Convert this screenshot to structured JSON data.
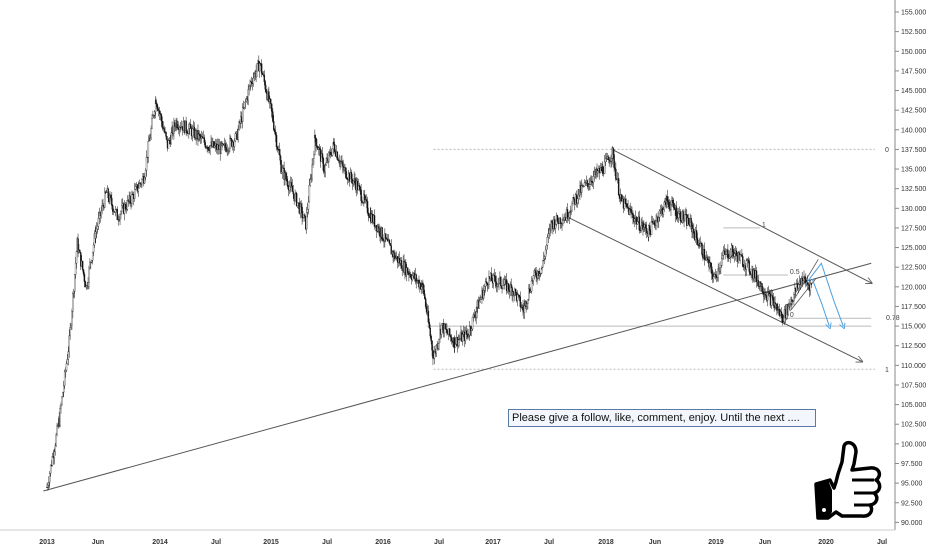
{
  "chart_data": {
    "type": "candlestick",
    "x_ticks": [
      "2013",
      "Jun",
      "2014",
      "Jul",
      "2015",
      "Jul",
      "2016",
      "Jul",
      "2017",
      "Jul",
      "2018",
      "Jun",
      "2019",
      "Jun",
      "2020",
      "Jul"
    ],
    "x_ticks_bold": [
      true,
      false,
      true,
      false,
      true,
      false,
      true,
      false,
      true,
      false,
      true,
      false,
      true,
      false,
      true,
      false
    ],
    "y_ticks": [
      "155.000",
      "152.500",
      "150.000",
      "147.500",
      "145.000",
      "142.500",
      "140.000",
      "137.500",
      "135.000",
      "132.500",
      "130.000",
      "127.500",
      "125.000",
      "122.500",
      "120.000",
      "117.500",
      "115.000",
      "112.500",
      "110.000",
      "107.500",
      "105.000",
      "102.500",
      "100.000",
      "97.500",
      "95.000",
      "92.500",
      "90.000"
    ],
    "ylim": [
      89.0,
      156.5
    ],
    "price_path": [
      [
        "2013-01-01",
        94.5
      ],
      [
        "2013-02-10",
        103
      ],
      [
        "2013-03-15",
        113
      ],
      [
        "2013-04-10",
        125.5
      ],
      [
        "2013-05-10",
        120
      ],
      [
        "2013-06-10",
        127
      ],
      [
        "2013-07-15",
        132
      ],
      [
        "2013-08-20",
        129
      ],
      [
        "2013-10-01",
        131
      ],
      [
        "2013-11-15",
        134
      ],
      [
        "2013-12-25",
        144
      ],
      [
        "2014-02-01",
        138
      ],
      [
        "2014-03-01",
        141
      ],
      [
        "2014-04-15",
        140
      ],
      [
        "2014-06-15",
        138
      ],
      [
        "2014-08-01",
        137.5
      ],
      [
        "2014-09-15",
        139
      ],
      [
        "2014-11-01",
        146
      ],
      [
        "2014-12-01",
        148.5
      ],
      [
        "2015-01-10",
        142
      ],
      [
        "2015-02-10",
        135
      ],
      [
        "2015-04-01",
        131
      ],
      [
        "2015-05-01",
        128
      ],
      [
        "2015-06-01",
        139
      ],
      [
        "2015-07-01",
        135
      ],
      [
        "2015-08-01",
        138
      ],
      [
        "2015-09-01",
        135
      ],
      [
        "2015-10-15",
        133
      ],
      [
        "2015-12-01",
        129
      ],
      [
        "2016-01-01",
        127
      ],
      [
        "2016-02-15",
        124
      ],
      [
        "2016-04-01",
        122
      ],
      [
        "2016-05-20",
        120
      ],
      [
        "2016-06-24",
        111
      ],
      [
        "2016-07-20",
        115
      ],
      [
        "2016-09-01",
        113
      ],
      [
        "2016-10-15",
        114
      ],
      [
        "2016-11-15",
        117.5
      ],
      [
        "2016-12-20",
        121
      ],
      [
        "2017-02-01",
        120.5
      ],
      [
        "2017-03-15",
        119.5
      ],
      [
        "2017-04-15",
        117
      ],
      [
        "2017-05-15",
        121
      ],
      [
        "2017-06-15",
        122.5
      ],
      [
        "2017-07-15",
        128
      ],
      [
        "2017-09-01",
        129
      ],
      [
        "2017-10-15",
        132
      ],
      [
        "2017-12-01",
        134
      ],
      [
        "2018-01-01",
        135
      ],
      [
        "2018-02-01",
        137
      ],
      [
        "2018-03-01",
        131
      ],
      [
        "2018-04-01",
        129.5
      ],
      [
        "2018-05-01",
        128
      ],
      [
        "2018-06-01",
        127
      ],
      [
        "2018-07-01",
        129
      ],
      [
        "2018-08-01",
        131
      ],
      [
        "2018-09-01",
        129.5
      ],
      [
        "2018-10-15",
        128
      ],
      [
        "2018-12-01",
        124
      ],
      [
        "2019-01-03",
        121
      ],
      [
        "2019-02-01",
        124
      ],
      [
        "2019-03-01",
        124.5
      ],
      [
        "2019-04-15",
        123
      ],
      [
        "2019-05-15",
        121.5
      ],
      [
        "2019-06-15",
        119.5
      ],
      [
        "2019-07-15",
        118
      ],
      [
        "2019-08-15",
        116
      ],
      [
        "2019-09-15",
        118.5
      ],
      [
        "2019-10-15",
        121
      ],
      [
        "2019-11-20",
        120
      ]
    ],
    "lines": [
      {
        "from": [
          "2012-12-20",
          94.0
        ],
        "to": [
          "2020-06-01",
          123.0
        ]
      },
      {
        "from": [
          "2018-02-01",
          137.5
        ],
        "to": [
          "2020-06-01",
          120.5
        ]
      },
      {
        "from": [
          "2017-09-01",
          129.0
        ],
        "to": [
          "2020-05-01",
          110.5
        ]
      }
    ],
    "fibonacci_full": [
      {
        "level": "0",
        "price": 137.5,
        "from": "2016-06-24"
      },
      {
        "level": "1",
        "price": 109.5,
        "from": "2016-06-24"
      }
    ],
    "fibonacci_partial": [
      {
        "level": "1",
        "price": 127.5,
        "from": "2019-02-01",
        "to": "2019-06-01"
      },
      {
        "level": "0.5",
        "price": 121.5,
        "from": "2019-02-01",
        "to": "2019-09-01"
      },
      {
        "level": "0",
        "price": 116.0,
        "from": "2019-08-01",
        "to": "2019-09-01"
      }
    ],
    "fib_078_label": "0.78",
    "line_078": {
      "price": 115.0,
      "from": "2016-06-01",
      "to": "2020-06-01"
    },
    "projections": [
      {
        "points": [
          [
            "2019-11-01",
            120.5
          ],
          [
            "2019-12-20",
            123
          ],
          [
            "2020-02-01",
            118
          ],
          [
            "2020-03-01",
            115
          ]
        ]
      },
      {
        "points": [
          [
            "2019-11-20",
            121
          ],
          [
            "2019-12-20",
            118
          ],
          [
            "2020-01-15",
            115
          ]
        ]
      }
    ],
    "colors": {
      "candle": "#111111",
      "trendline": "#555555",
      "fib": "#bbbbbb",
      "projection": "#4a9fe0"
    }
  },
  "annotation": {
    "text": "Please give a follow, like, comment, enjoy. Until the next ...."
  },
  "icon": {
    "name": "thumbs-up-icon"
  }
}
